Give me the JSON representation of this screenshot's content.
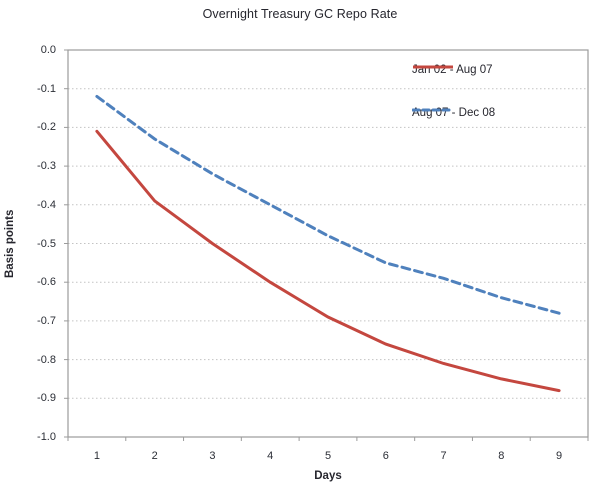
{
  "title": "Overnight Treasury GC Repo Rate",
  "colors": {
    "series_red": "#C4473F",
    "series_blue": "#4F81BD",
    "gridline": "#c3c3c3",
    "plot_border": "#9b9b9b",
    "text": "#26262e"
  },
  "chart_data": {
    "type": "line",
    "title": "Overnight Treasury GC Repo Rate",
    "xlabel": "Days",
    "ylabel": "Basis points",
    "x": [
      1,
      2,
      3,
      4,
      5,
      6,
      7,
      8,
      9
    ],
    "x_tick_labels": [
      "1",
      "2",
      "3",
      "4",
      "5",
      "6",
      "7",
      "8",
      "9"
    ],
    "ylim": [
      -1.0,
      0.0
    ],
    "ytick_step": 0.1,
    "y_tick_labels": [
      "0.0",
      "-0.1",
      "-0.2",
      "-0.3",
      "-0.4",
      "-0.5",
      "-0.6",
      "-0.7",
      "-0.8",
      "-0.9",
      "-1.0"
    ],
    "grid": "horizontal-dotted",
    "legend_position": "inside-top-right",
    "series": [
      {
        "name": "Jan 02 - Aug 07",
        "color": "#C4473F",
        "style": "solid",
        "values": [
          -0.21,
          -0.39,
          -0.5,
          -0.6,
          -0.69,
          -0.76,
          -0.81,
          -0.85,
          -0.88
        ]
      },
      {
        "name": "Aug 07 - Dec 08",
        "color": "#4F81BD",
        "style": "dashed",
        "values": [
          -0.12,
          -0.23,
          -0.32,
          -0.4,
          -0.48,
          -0.55,
          -0.59,
          -0.64,
          -0.68
        ]
      }
    ]
  }
}
